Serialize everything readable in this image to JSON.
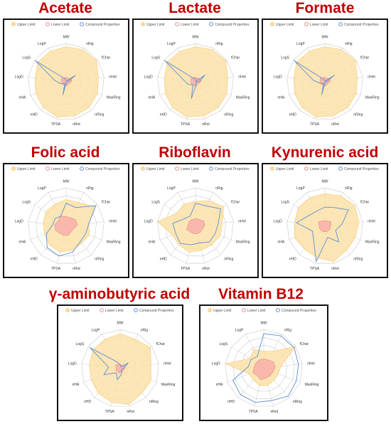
{
  "figure": {
    "legend": {
      "upper": "Upper Limit",
      "lower": "Lower Limit",
      "compound": "Compound Properties"
    },
    "colors": {
      "upper_fill": "#fde2a8",
      "upper_stroke": "#f5c66e",
      "lower_fill": "#f7a8a8",
      "lower_stroke": "#e98a8a",
      "compound": "#5b8fd6",
      "grid": "#c8c8c8",
      "title": "#c00000"
    }
  },
  "chart_data": [
    {
      "type": "radar",
      "title": "Acetate",
      "axes": [
        "MW",
        "nRig",
        "fChar",
        "nHet",
        "MaxRing",
        "nRing",
        "nRot",
        "TPSA",
        "nHD",
        "nHA",
        "LogD",
        "LogS",
        "LogP"
      ],
      "rmax": 1,
      "series": [
        {
          "name": "Upper Limit",
          "values": [
            0.92,
            0.95,
            0.97,
            0.85,
            0.88,
            0.9,
            0.92,
            0.95,
            0.9,
            0.85,
            0.82,
            0.9,
            0.9
          ]
        },
        {
          "name": "Lower Limit",
          "values": [
            0.12,
            0.1,
            0.15,
            0.15,
            0.1,
            0.08,
            0.1,
            0.12,
            0.1,
            0.12,
            0.12,
            0.15,
            0.12
          ]
        },
        {
          "name": "Compound Properties",
          "values": [
            0.05,
            0.02,
            0.3,
            0.05,
            0.02,
            0.02,
            0.02,
            0.35,
            0.05,
            0.15,
            0.3,
            0.98,
            0.1
          ]
        }
      ]
    },
    {
      "type": "radar",
      "title": "Lactate",
      "axes": [
        "MW",
        "nRig",
        "fChar",
        "nHet",
        "MaxRing",
        "nRing",
        "nRot",
        "TPSA",
        "nHD",
        "nHA",
        "LogD",
        "LogS",
        "LogP"
      ],
      "rmax": 1,
      "series": [
        {
          "name": "Upper Limit",
          "values": [
            0.92,
            0.95,
            0.97,
            0.85,
            0.88,
            0.9,
            0.92,
            0.95,
            0.9,
            0.85,
            0.82,
            0.9,
            0.9
          ]
        },
        {
          "name": "Lower Limit",
          "values": [
            0.12,
            0.1,
            0.15,
            0.15,
            0.1,
            0.08,
            0.1,
            0.12,
            0.1,
            0.12,
            0.12,
            0.15,
            0.12
          ]
        },
        {
          "name": "Compound Properties",
          "values": [
            0.08,
            0.02,
            0.3,
            0.1,
            0.02,
            0.02,
            0.08,
            0.45,
            0.1,
            0.2,
            0.3,
            0.98,
            0.1
          ]
        }
      ]
    },
    {
      "type": "radar",
      "title": "Formate",
      "axes": [
        "MW",
        "nRig",
        "fChar",
        "nHet",
        "MaxRing",
        "nRing",
        "nRot",
        "TPSA",
        "nHD",
        "nHA",
        "LogD",
        "LogS",
        "LogP"
      ],
      "rmax": 1,
      "series": [
        {
          "name": "Upper Limit",
          "values": [
            0.92,
            0.95,
            0.97,
            0.85,
            0.88,
            0.9,
            0.92,
            0.95,
            0.9,
            0.85,
            0.82,
            0.9,
            0.9
          ]
        },
        {
          "name": "Lower Limit",
          "values": [
            0.12,
            0.1,
            0.15,
            0.15,
            0.1,
            0.08,
            0.1,
            0.12,
            0.1,
            0.12,
            0.12,
            0.15,
            0.12
          ]
        },
        {
          "name": "Compound Properties",
          "values": [
            0.03,
            0.02,
            0.3,
            0.05,
            0.02,
            0.02,
            0.02,
            0.35,
            0.05,
            0.12,
            0.3,
            0.98,
            0.08
          ]
        }
      ]
    },
    {
      "type": "radar",
      "title": "Folic acid",
      "axes": [
        "MW",
        "nRig",
        "fChar",
        "nHet",
        "MaxRing",
        "nRing",
        "nRot",
        "TPSA",
        "nHD",
        "nHA",
        "LogD",
        "LogS",
        "LogP"
      ],
      "rmax": 1,
      "series": [
        {
          "name": "Upper Limit",
          "values": [
            0.7,
            0.7,
            0.9,
            0.6,
            0.65,
            0.6,
            0.65,
            0.7,
            0.65,
            0.6,
            0.6,
            0.65,
            0.65
          ]
        },
        {
          "name": "Lower Limit",
          "values": [
            0.25,
            0.25,
            0.3,
            0.3,
            0.2,
            0.2,
            0.25,
            0.25,
            0.25,
            0.3,
            0.3,
            0.25,
            0.3
          ]
        },
        {
          "name": "Compound Properties",
          "values": [
            0.6,
            0.55,
            0.95,
            0.6,
            0.55,
            0.55,
            0.7,
            0.8,
            0.75,
            0.55,
            0.35,
            0.35,
            0.3
          ]
        }
      ]
    },
    {
      "type": "radar",
      "title": "Riboflavin",
      "axes": [
        "MW",
        "nRig",
        "fChar",
        "nHet",
        "MaxRing",
        "nRing",
        "nRot",
        "TPSA",
        "nHD",
        "nHA",
        "LogD",
        "LogS",
        "LogP"
      ],
      "rmax": 1,
      "series": [
        {
          "name": "Upper Limit",
          "values": [
            0.65,
            0.75,
            0.9,
            0.7,
            0.7,
            0.65,
            0.65,
            0.7,
            0.65,
            0.65,
            1.0,
            0.6,
            0.65
          ]
        },
        {
          "name": "Lower Limit",
          "values": [
            0.2,
            0.2,
            0.25,
            0.25,
            0.2,
            0.2,
            0.2,
            0.2,
            0.2,
            0.25,
            0.2,
            0.2,
            0.2
          ]
        },
        {
          "name": "Compound Properties",
          "values": [
            0.6,
            0.6,
            0.8,
            0.6,
            0.55,
            0.55,
            0.45,
            0.5,
            0.6,
            0.55,
            0.6,
            0.35,
            0.3
          ]
        }
      ]
    },
    {
      "type": "radar",
      "title": "Kynurenic acid",
      "axes": [
        "MW",
        "nRig",
        "fChar",
        "nHet",
        "MaxRing",
        "nRing",
        "nRot",
        "TPSA",
        "nHD",
        "nHA",
        "LogD",
        "LogS",
        "LogP"
      ],
      "rmax": 1,
      "series": [
        {
          "name": "Upper Limit",
          "values": [
            0.85,
            0.9,
            0.95,
            0.9,
            0.85,
            0.85,
            0.95,
            0.85,
            0.8,
            0.85,
            0.8,
            0.85,
            0.85
          ]
        },
        {
          "name": "Lower Limit",
          "values": [
            0.15,
            0.15,
            0.2,
            0.15,
            0.15,
            0.15,
            0.15,
            0.15,
            0.15,
            0.15,
            0.15,
            0.2,
            0.15
          ]
        },
        {
          "name": "Compound Properties",
          "values": [
            0.5,
            0.55,
            0.75,
            0.45,
            0.3,
            0.55,
            0.3,
            0.95,
            0.45,
            0.35,
            0.75,
            0.5,
            0.45
          ]
        }
      ]
    },
    {
      "type": "radar",
      "title": "γ-aminobutyric acid",
      "axes": [
        "MW",
        "nRig",
        "fChar",
        "nHet",
        "MaxRing",
        "nRing",
        "nRot",
        "TPSA",
        "nHD",
        "nHA",
        "LogD",
        "LogS",
        "LogP"
      ],
      "rmax": 1,
      "series": [
        {
          "name": "Upper Limit",
          "values": [
            0.9,
            0.85,
            0.95,
            0.8,
            0.85,
            0.85,
            0.95,
            0.9,
            0.85,
            0.8,
            0.8,
            0.85,
            0.85
          ]
        },
        {
          "name": "Lower Limit",
          "values": [
            0.1,
            0.1,
            0.15,
            0.12,
            0.1,
            0.1,
            0.1,
            0.12,
            0.1,
            0.12,
            0.1,
            0.15,
            0.12
          ]
        },
        {
          "name": "Compound Properties",
          "values": [
            0.1,
            0.05,
            0.25,
            0.1,
            0.05,
            0.05,
            0.15,
            0.3,
            0.15,
            0.45,
            0.3,
            0.95,
            0.2
          ]
        }
      ]
    },
    {
      "type": "radar",
      "title": "Vitamin B12",
      "axes": [
        "MW",
        "nRig",
        "fChar",
        "nHet",
        "MaxRing",
        "nRing",
        "nRot",
        "TPSA",
        "nHD",
        "nHA",
        "LogD",
        "LogS",
        "LogP"
      ],
      "rmax": 1,
      "series": [
        {
          "name": "Upper Limit",
          "values": [
            0.45,
            0.5,
            1.0,
            0.45,
            0.4,
            0.4,
            0.45,
            0.45,
            0.4,
            0.4,
            1.0,
            0.45,
            0.55
          ]
        },
        {
          "name": "Lower Limit",
          "values": [
            0.25,
            0.25,
            0.3,
            0.3,
            0.25,
            0.25,
            0.25,
            0.3,
            0.25,
            0.3,
            0.25,
            0.25,
            0.25
          ]
        },
        {
          "name": "Compound Properties",
          "values": [
            0.9,
            0.95,
            0.95,
            0.9,
            0.9,
            0.95,
            0.85,
            0.9,
            0.9,
            0.85,
            0.4,
            0.4,
            0.35
          ]
        }
      ]
    }
  ]
}
